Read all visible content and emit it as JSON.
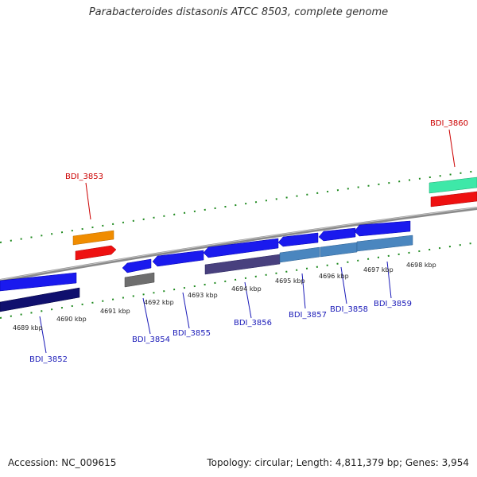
{
  "title": "Parabacteroides distasonis ATCC 8503, complete genome",
  "footer": {
    "accession": "Accession: NC_009615",
    "summary": "Topology: circular; Length: 4,811,379 bp; Genes: 3,954"
  },
  "colors": {
    "backbone": "#8c8c8c",
    "tick_green": "#1f8a1f",
    "highlight_label": "#cc0000",
    "normal_label": "#1a1ab8"
  },
  "ticks": [
    {
      "label": "4689 kbp"
    },
    {
      "label": "4690 kbp"
    },
    {
      "label": "4691 kbp"
    },
    {
      "label": "4692 kbp"
    },
    {
      "label": "4693 kbp"
    },
    {
      "label": "4694 kbp"
    },
    {
      "label": "4695 kbp"
    },
    {
      "label": "4696 kbp"
    },
    {
      "label": "4697 kbp"
    },
    {
      "label": "4698 kbp"
    }
  ],
  "genes": [
    {
      "name": "BDI_3852",
      "highlighted": false
    },
    {
      "name": "BDI_3853",
      "highlighted": true
    },
    {
      "name": "BDI_3854",
      "highlighted": false
    },
    {
      "name": "BDI_3855",
      "highlighted": false
    },
    {
      "name": "BDI_3856",
      "highlighted": false
    },
    {
      "name": "BDI_3857",
      "highlighted": false
    },
    {
      "name": "BDI_3858",
      "highlighted": false
    },
    {
      "name": "BDI_3859",
      "highlighted": false
    },
    {
      "name": "BDI_3860",
      "highlighted": true
    }
  ]
}
